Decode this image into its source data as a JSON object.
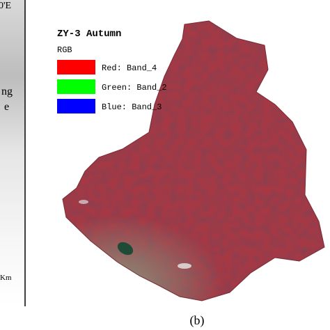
{
  "left_panel": {
    "coordinate_label": "0'E",
    "place_label_1": "ng",
    "place_label_2": "e",
    "scale_label": "Km"
  },
  "legend": {
    "title": "ZY-3 Autumn",
    "subtitle": "RGB",
    "items": [
      {
        "label": "Red: Band_4",
        "color": "#ff0000"
      },
      {
        "label": "Green: Band_2",
        "color": "#00ff00"
      },
      {
        "label": "Blue: Band_3",
        "color": "#0000ff"
      }
    ]
  },
  "caption": "(b)"
}
